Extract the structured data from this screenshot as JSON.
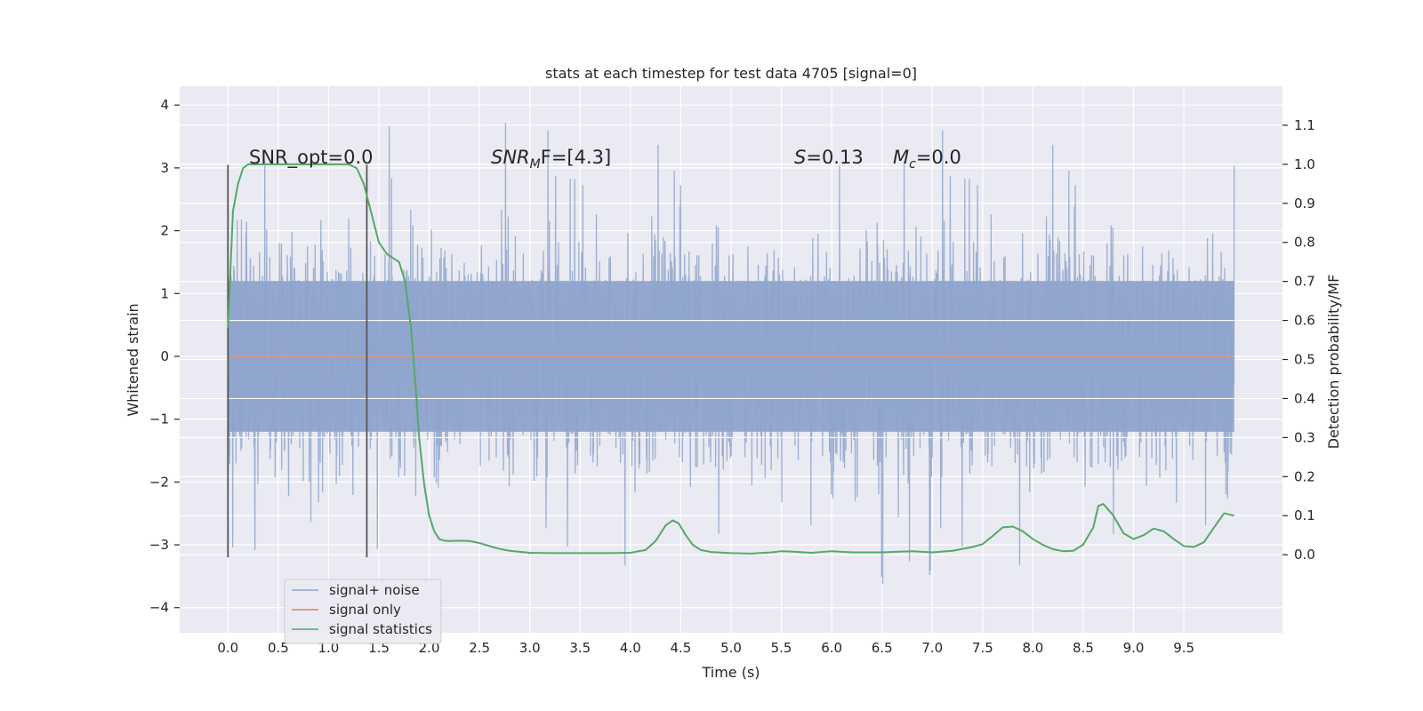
{
  "chart_data": {
    "type": "line",
    "title": "stats at each timestep for test data 4705 [signal=0]",
    "xlabel": "Time (s)",
    "ylabel": "Whitened strain",
    "y2label": "Detection probability/MF",
    "xlim": [
      -0.48,
      10.48
    ],
    "ylim": [
      -4.4,
      4.3
    ],
    "y2lim": [
      -0.2,
      1.2
    ],
    "xticks": [
      "0.0",
      "0.5",
      "1.0",
      "1.5",
      "2.0",
      "2.5",
      "3.0",
      "3.5",
      "4.0",
      "4.5",
      "5.0",
      "5.5",
      "6.0",
      "6.5",
      "7.0",
      "7.5",
      "8.0",
      "8.5",
      "9.0",
      "9.5"
    ],
    "yticks": [
      "4",
      "3",
      "2",
      "1",
      "0",
      "−1",
      "−2",
      "−3",
      "−4"
    ],
    "y2ticks": [
      "1.1",
      "1.0",
      "0.9",
      "0.8",
      "0.7",
      "0.6",
      "0.5",
      "0.4",
      "0.3",
      "0.2",
      "0.1",
      "0.0"
    ],
    "grid": true,
    "legend_position": "lower-left",
    "annotations": {
      "snr_opt": "SNR_opt=0.0",
      "snr_mf_main": "SNR",
      "snr_mf_sub": "M",
      "snr_mf_rest": "F=[4.3]",
      "s_main": "S",
      "s_rest": "=0.13",
      "mc_main": "M",
      "mc_sub": "c",
      "mc_rest": "=0.0"
    },
    "vertical_markers": [
      0.0,
      1.38
    ],
    "series": [
      {
        "name": "signal+ noise",
        "color": "#8fa4cc",
        "description": "white noise, time 0 to 10 s",
        "x_range": [
          0.0,
          10.0
        ],
        "band_core": [
          -1.2,
          1.2
        ],
        "band_typical": [
          -2.0,
          2.2
        ],
        "band_extreme": [
          -3.9,
          3.9
        ]
      },
      {
        "name": "signal only",
        "color": "#dd8452",
        "x": [
          0.0,
          10.0
        ],
        "y": [
          0.0,
          0.0
        ]
      },
      {
        "name": "signal statistics",
        "color": "#55a868",
        "axis": "right",
        "x": [
          0.0,
          0.05,
          0.1,
          0.15,
          0.2,
          0.3,
          0.5,
          0.7,
          0.9,
          1.0,
          1.1,
          1.2,
          1.28,
          1.35,
          1.42,
          1.5,
          1.58,
          1.64,
          1.7,
          1.76,
          1.82,
          1.86,
          1.9,
          1.95,
          2.0,
          2.05,
          2.1,
          2.15,
          2.2,
          2.3,
          2.4,
          2.5,
          2.6,
          2.7,
          2.8,
          3.0,
          3.2,
          3.5,
          3.8,
          4.0,
          4.15,
          4.25,
          4.35,
          4.42,
          4.48,
          4.55,
          4.62,
          4.7,
          4.8,
          5.0,
          5.2,
          5.4,
          5.5,
          5.6,
          5.8,
          6.0,
          6.2,
          6.5,
          6.8,
          7.0,
          7.2,
          7.4,
          7.5,
          7.6,
          7.7,
          7.8,
          7.9,
          8.0,
          8.1,
          8.2,
          8.3,
          8.4,
          8.5,
          8.6,
          8.65,
          8.7,
          8.8,
          8.9,
          9.0,
          9.1,
          9.2,
          9.3,
          9.4,
          9.5,
          9.6,
          9.7,
          9.8,
          9.9,
          10.0
        ],
        "y": [
          0.58,
          0.88,
          0.95,
          0.99,
          1.0,
          1.0,
          1.0,
          1.0,
          1.0,
          1.0,
          1.0,
          1.0,
          0.99,
          0.95,
          0.88,
          0.8,
          0.77,
          0.76,
          0.75,
          0.7,
          0.58,
          0.45,
          0.3,
          0.18,
          0.1,
          0.06,
          0.04,
          0.036,
          0.035,
          0.036,
          0.035,
          0.03,
          0.022,
          0.015,
          0.01,
          0.005,
          0.004,
          0.004,
          0.004,
          0.005,
          0.012,
          0.035,
          0.075,
          0.088,
          0.08,
          0.05,
          0.025,
          0.012,
          0.007,
          0.004,
          0.003,
          0.006,
          0.009,
          0.008,
          0.005,
          0.009,
          0.006,
          0.006,
          0.009,
          0.006,
          0.01,
          0.02,
          0.027,
          0.048,
          0.07,
          0.072,
          0.06,
          0.04,
          0.025,
          0.014,
          0.009,
          0.01,
          0.026,
          0.07,
          0.125,
          0.13,
          0.1,
          0.055,
          0.04,
          0.05,
          0.067,
          0.06,
          0.04,
          0.022,
          0.02,
          0.032,
          0.07,
          0.106,
          0.1
        ]
      }
    ]
  }
}
